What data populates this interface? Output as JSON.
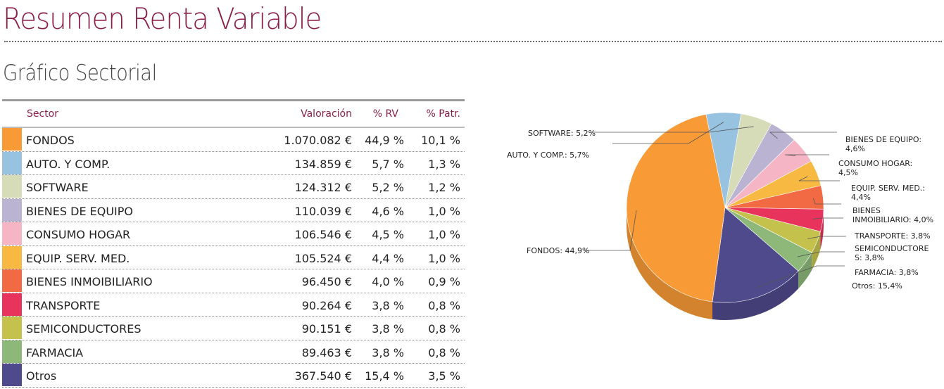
{
  "page": {
    "title": "Resumen Renta Variable",
    "subtitle": "Gráfico Sectorial"
  },
  "table": {
    "headers": {
      "sector": "Sector",
      "valoracion": "Valoración",
      "rv": "% RV",
      "patr": "% Patr."
    },
    "rows": [
      {
        "sector": "FONDOS",
        "valoracion": "1.070.082 €",
        "rv": "44,9 %",
        "patr": "10,1 %",
        "color": "#f89a36"
      },
      {
        "sector": "AUTO. Y COMP.",
        "valoracion": "134.859 €",
        "rv": "5,7 %",
        "patr": "1,3 %",
        "color": "#97c2e0"
      },
      {
        "sector": "SOFTWARE",
        "valoracion": "124.312 €",
        "rv": "5,2 %",
        "patr": "1,2 %",
        "color": "#d6dbb8"
      },
      {
        "sector": "BIENES DE EQUIPO",
        "valoracion": "110.039 €",
        "rv": "4,6 %",
        "patr": "1,0 %",
        "color": "#bbb3d2"
      },
      {
        "sector": "CONSUMO HOGAR",
        "valoracion": "106.546 €",
        "rv": "4,5 %",
        "patr": "1,0 %",
        "color": "#f6b5c4"
      },
      {
        "sector": "EQUIP. SERV. MED.",
        "valoracion": "105.524 €",
        "rv": "4,4 %",
        "patr": "1,0 %",
        "color": "#f7b942"
      },
      {
        "sector": "BIENES INMOIBILIARIO",
        "valoracion": "96.450 €",
        "rv": "4,0 %",
        "patr": "0,9 %",
        "color": "#f26a43"
      },
      {
        "sector": "TRANSPORTE",
        "valoracion": "90.264 €",
        "rv": "3,8 %",
        "patr": "0,8 %",
        "color": "#e8345d"
      },
      {
        "sector": "SEMICONDUCTORES",
        "valoracion": "90.151 €",
        "rv": "3,8 %",
        "patr": "0,8 %",
        "color": "#c4c24c"
      },
      {
        "sector": "FARMACIA",
        "valoracion": "89.463 €",
        "rv": "3,8 %",
        "patr": "0,8 %",
        "color": "#8db87a"
      },
      {
        "sector": "Otros",
        "valoracion": "367.540 €",
        "rv": "15,4 %",
        "patr": "3,5 %",
        "color": "#4f4a8b"
      }
    ]
  },
  "chart_data": {
    "type": "pie",
    "title": "",
    "slices": [
      {
        "label": "SOFTWARE: 5,2%",
        "name": "SOFTWARE",
        "value": 5.2,
        "color": "#d6dbb8"
      },
      {
        "label": "BIENES DE EQUIPO: 4,6%",
        "name": "BIENES DE EQUIPO",
        "value": 4.6,
        "color": "#bbb3d2"
      },
      {
        "label": "CONSUMO HOGAR: 4,5%",
        "name": "CONSUMO HOGAR",
        "value": 4.5,
        "color": "#f6b5c4"
      },
      {
        "label": "EQUIP. SERV. MED.: 4,4%",
        "name": "EQUIP. SERV. MED.",
        "value": 4.4,
        "color": "#f7b942"
      },
      {
        "label": "BIENES INMOIBILIARIO: 4,0%",
        "name": "BIENES INMOIBILIARIO",
        "value": 4.0,
        "color": "#f26a43"
      },
      {
        "label": "TRANSPORTE: 3,8%",
        "name": "TRANSPORTE",
        "value": 3.8,
        "color": "#e8345d"
      },
      {
        "label": "SEMICONDUCTORES: 3,8%",
        "name": "SEMICONDUCTORES",
        "value": 3.8,
        "color": "#c4c24c"
      },
      {
        "label": "FARMACIA: 3,8%",
        "name": "FARMACIA",
        "value": 3.8,
        "color": "#8db87a"
      },
      {
        "label": "Otros: 15,4%",
        "name": "Otros",
        "value": 15.4,
        "color": "#4f4a8b"
      },
      {
        "label": "FONDOS: 44,9%",
        "name": "FONDOS",
        "value": 44.9,
        "color": "#f89a36"
      },
      {
        "label": "AUTO. Y COMP.: 5,7%",
        "name": "AUTO. Y COMP.",
        "value": 5.7,
        "color": "#97c2e0"
      }
    ]
  }
}
